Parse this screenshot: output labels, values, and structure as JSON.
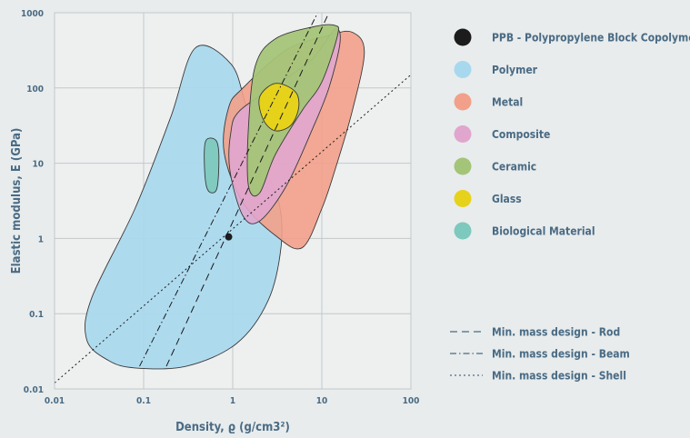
{
  "chart_data": {
    "type": "scatter",
    "xlabel": "Density, ϱ (g/cm3²)",
    "ylabel": "Elastic modulus, E (GPa)",
    "xscale": "log",
    "yscale": "log",
    "xlim": [
      0.01,
      100
    ],
    "ylim": [
      0.01,
      1000
    ],
    "grid": true,
    "legend_position": "right",
    "x_ticks": [
      {
        "value": 0.01,
        "label": "0.01"
      },
      {
        "value": 0.1,
        "label": "0.1"
      },
      {
        "value": 1,
        "label": "1"
      },
      {
        "value": 10,
        "label": "10"
      },
      {
        "value": 100,
        "label": "100"
      }
    ],
    "y_ticks": [
      {
        "value": 0.01,
        "label": "0.01"
      },
      {
        "value": 0.1,
        "label": "0.1"
      },
      {
        "value": 1,
        "label": "1"
      },
      {
        "value": 10,
        "label": "10"
      },
      {
        "value": 100,
        "label": "100"
      },
      {
        "value": 1000,
        "label": "1000"
      }
    ],
    "regions": [
      {
        "name": "Polymer",
        "color": "#a8d8ee",
        "opacity": 0.92,
        "boundary": [
          [
            0.38,
            340
          ],
          [
            0.95,
            210
          ],
          [
            1.4,
            60
          ],
          [
            2.2,
            10
          ],
          [
            3.3,
            3
          ],
          [
            3.5,
            0.8
          ],
          [
            2.5,
            0.15
          ],
          [
            1.1,
            0.04
          ],
          [
            0.3,
            0.02
          ],
          [
            0.08,
            0.019
          ],
          [
            0.04,
            0.024
          ],
          [
            0.023,
            0.045
          ],
          [
            0.026,
            0.16
          ],
          [
            0.08,
            2.5
          ],
          [
            0.2,
            40
          ]
        ]
      },
      {
        "name": "Metal",
        "color": "#f2a08a",
        "opacity": 0.9,
        "boundary": [
          [
            1.3,
            100
          ],
          [
            4,
            320
          ],
          [
            12,
            500
          ],
          [
            22,
            550
          ],
          [
            30,
            300
          ],
          [
            22,
            50
          ],
          [
            14,
            8
          ],
          [
            10,
            2.5
          ],
          [
            6,
            0.75
          ],
          [
            3,
            1.1
          ],
          [
            1.3,
            3
          ],
          [
            0.8,
            14
          ],
          [
            0.9,
            55
          ]
        ]
      },
      {
        "name": "Composite",
        "color": "#e0a6ce",
        "opacity": 0.9,
        "boundary": [
          [
            1.2,
            50
          ],
          [
            3.5,
            120
          ],
          [
            8,
            250
          ],
          [
            14,
            600
          ],
          [
            16,
            400
          ],
          [
            12,
            100
          ],
          [
            8,
            30
          ],
          [
            4,
            5
          ],
          [
            2,
            1.7
          ],
          [
            1.3,
            2
          ],
          [
            0.93,
            8
          ],
          [
            0.95,
            25
          ]
        ]
      },
      {
        "name": "Ceramic",
        "color": "#a4c478",
        "opacity": 0.95,
        "boundary": [
          [
            1.8,
            200
          ],
          [
            3,
            450
          ],
          [
            8,
            650
          ],
          [
            14,
            680
          ],
          [
            15,
            500
          ],
          [
            10,
            120
          ],
          [
            6,
            50
          ],
          [
            3,
            13
          ],
          [
            2,
            4
          ],
          [
            1.5,
            5
          ],
          [
            1.5,
            30
          ]
        ]
      },
      {
        "name": "Biological Material",
        "color": "#7ec9bd",
        "opacity": 0.95,
        "boundary": [
          [
            0.5,
            20
          ],
          [
            0.65,
            20
          ],
          [
            0.7,
            12
          ],
          [
            0.66,
            4.5
          ],
          [
            0.52,
            4.5
          ],
          [
            0.48,
            10
          ]
        ]
      },
      {
        "name": "Glass",
        "color": "#e6d21a",
        "opacity": 1,
        "boundary": [
          [
            2,
            75
          ],
          [
            3,
            115
          ],
          [
            5,
            90
          ],
          [
            5.5,
            55
          ],
          [
            4.5,
            32
          ],
          [
            3,
            27
          ],
          [
            2.2,
            38
          ]
        ]
      }
    ],
    "points": [
      {
        "name": "PPB - Polypropylene Block Copolymer",
        "x": 0.9,
        "y": 1.05,
        "color": "#1c1c1c"
      }
    ],
    "guidelines": [
      {
        "name": "Min. mass design - Rod",
        "style": "dashed",
        "from": [
          0.18,
          0.02
        ],
        "to": [
          12,
          1000
        ]
      },
      {
        "name": "Min. mass design - Beam",
        "style": "dashdot",
        "from": [
          0.09,
          0.02
        ],
        "to": [
          9,
          1000
        ]
      },
      {
        "name": "Min. mass design - Shell",
        "style": "dotted",
        "from": [
          0.01,
          0.012
        ],
        "to": [
          100,
          150
        ]
      }
    ]
  },
  "legend": {
    "markers": [
      {
        "label": "PPB - Polypropylene Block Copolymer",
        "color": "#1c1c1c",
        "icon": "circle-icon"
      },
      {
        "label": "Polymer",
        "color": "#a8d8ee",
        "icon": "circle-icon"
      },
      {
        "label": "Metal",
        "color": "#f2a08a",
        "icon": "circle-icon"
      },
      {
        "label": "Composite",
        "color": "#e0a6ce",
        "icon": "circle-icon"
      },
      {
        "label": "Ceramic",
        "color": "#a4c478",
        "icon": "circle-icon"
      },
      {
        "label": "Glass",
        "color": "#e6d21a",
        "icon": "circle-icon"
      },
      {
        "label": "Biological Material",
        "color": "#7ec9bd",
        "icon": "circle-icon"
      }
    ],
    "lines": [
      {
        "label": "Min. mass design - Rod",
        "style": "dashed"
      },
      {
        "label": "Min. mass design - Beam",
        "style": "dashdot"
      },
      {
        "label": "Min. mass design - Shell",
        "style": "dotted"
      }
    ]
  },
  "colors": {
    "background": "#e8eced",
    "plot_area": "#eef0f0",
    "grid": "#c4c8ca",
    "text": "#4a6b84",
    "outline": "#3a3a3a"
  }
}
